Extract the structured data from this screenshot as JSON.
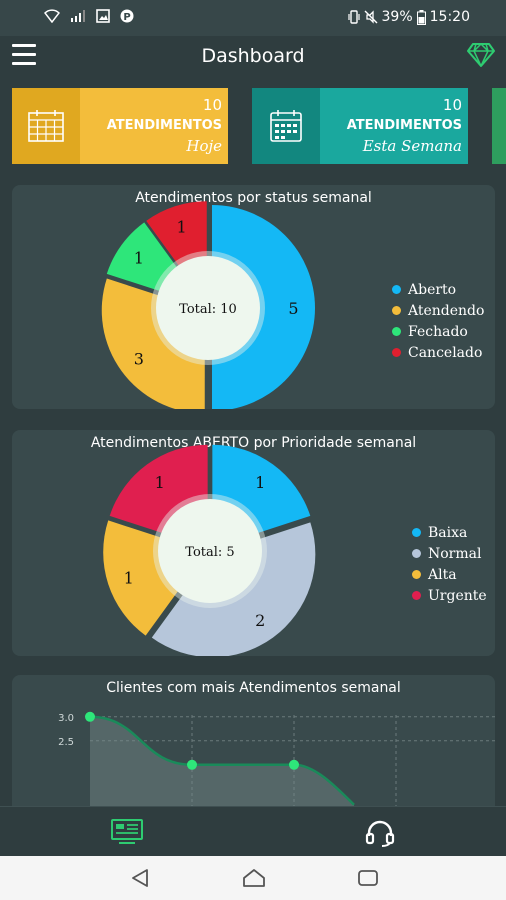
{
  "status_bar": {
    "battery": "39%",
    "time": "15:20"
  },
  "app_bar": {
    "title": "Dashboard",
    "menu_icon": "hamburger-menu-icon",
    "premium_icon": "diamond-icon",
    "accent_color": "#2ecc71"
  },
  "summary_cards": [
    {
      "count": "10",
      "label": "ATENDIMENTOS",
      "period": "Hoje",
      "icon": "calendar-grid-icon",
      "icon_color": "#e0a820",
      "body_color": "#f3bd3b"
    },
    {
      "count": "10",
      "label": "ATENDIMENTOS",
      "period": "Esta Semana",
      "icon": "calendar-week-icon",
      "icon_color": "#12877f",
      "body_color": "#1aa89e"
    }
  ],
  "charts": {
    "status": {
      "title": "Atendimentos por status semanal",
      "total_label": "Total: 10",
      "legend": [
        "Aberto",
        "Atendendo",
        "Fechado",
        "Cancelado"
      ]
    },
    "priority": {
      "title": "Atendimentos ABERTO por Prioridade semanal",
      "total_label": "Total: 5",
      "legend": [
        "Baixa",
        "Normal",
        "Alta",
        "Urgente"
      ]
    },
    "clients": {
      "title": "Clientes com mais Atendimentos semanal"
    }
  },
  "chart_data": [
    {
      "type": "pie",
      "title": "Atendimentos por status semanal",
      "categories": [
        "Aberto",
        "Atendendo",
        "Fechado",
        "Cancelado"
      ],
      "values": [
        5,
        3,
        1,
        1
      ],
      "colors": [
        "#14b8f5",
        "#f3bd3b",
        "#2ee67a",
        "#e01f2f"
      ],
      "legend": "right"
    },
    {
      "type": "pie",
      "title": "Atendimentos ABERTO por Prioridade semanal",
      "categories": [
        "Baixa",
        "Normal",
        "Alta",
        "Urgente"
      ],
      "values": [
        1,
        2,
        1,
        1
      ],
      "colors": [
        "#14b8f5",
        "#b6c6da",
        "#f3bd3b",
        "#e01f4f"
      ],
      "legend": "right"
    },
    {
      "type": "line",
      "title": "Clientes com mais Atendimentos semanal",
      "y_ticks": [
        "3.0",
        "2.5"
      ],
      "x": [
        0,
        1,
        2
      ],
      "values": [
        3,
        2,
        2
      ],
      "ylim": [
        1.6,
        3.1
      ],
      "grid": true,
      "color": "#1a8a5a"
    }
  ],
  "bottom_nav": {
    "items": [
      {
        "icon": "dashboard-icon",
        "active": true
      },
      {
        "icon": "headset-icon",
        "active": false
      }
    ]
  },
  "system_nav": {
    "back_icon": "back-triangle-icon",
    "home_icon": "home-icon",
    "recents_icon": "recents-icon"
  }
}
